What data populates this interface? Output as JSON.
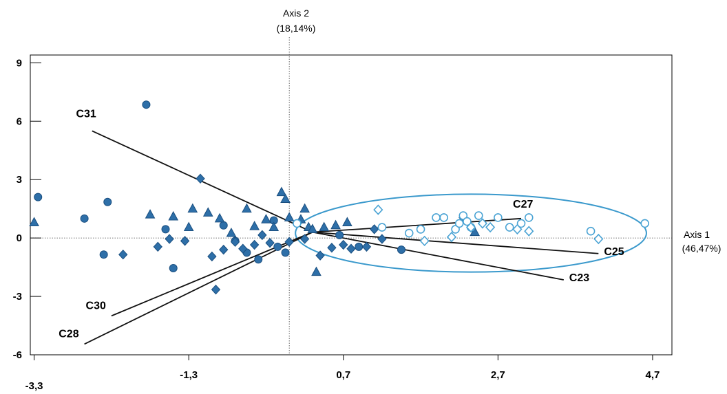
{
  "chart_data": {
    "type": "scatter",
    "title": "",
    "axis1_label": "Axis 1",
    "axis1_pct": "(46,47%)",
    "axis2_label": "Axis 2",
    "axis2_pct": "(18,14%)",
    "xlim": [
      -3.35,
      4.95
    ],
    "ylim": [
      -6.0,
      9.4
    ],
    "x_ticks": [
      {
        "value": -3.3,
        "label": "-3,3"
      },
      {
        "value": -1.3,
        "label": "-1,3"
      },
      {
        "value": 0.7,
        "label": "0,7"
      },
      {
        "value": 2.7,
        "label": "2,7"
      },
      {
        "value": 4.7,
        "label": "4,7"
      }
    ],
    "y_ticks": [
      {
        "value": 9,
        "label": "9"
      },
      {
        "value": 6,
        "label": "6"
      },
      {
        "value": 3,
        "label": "3"
      },
      {
        "value": 0,
        "label": "0"
      },
      {
        "value": -3,
        "label": "-3"
      },
      {
        "value": -6,
        "label": "-6"
      }
    ],
    "origin": [
      0.3,
      0.3
    ],
    "vectors": [
      {
        "name": "C31",
        "x": -2.55,
        "y": 5.5
      },
      {
        "name": "C30",
        "x": -2.3,
        "y": -4.0
      },
      {
        "name": "C28",
        "x": -2.65,
        "y": -5.45
      },
      {
        "name": "C27",
        "x": 3.0,
        "y": 1.0
      },
      {
        "name": "C25",
        "x": 4.0,
        "y": -0.8
      },
      {
        "name": "C23",
        "x": 3.55,
        "y": -2.15
      }
    ],
    "ellipse": {
      "center": [
        2.35,
        0.25
      ],
      "rx": 2.27,
      "ry": 2.0
    },
    "colors": {
      "filled": "#2e6fa8",
      "filled_stroke": "#1a4f80",
      "open": "#4aa3d4",
      "ellipse": "#3a99cc"
    },
    "series": [
      {
        "shape": "circle",
        "style": "filled",
        "points": [
          [
            -3.25,
            2.1
          ],
          [
            -2.65,
            1.0
          ],
          [
            -2.35,
            1.85
          ],
          [
            -2.4,
            -0.85
          ],
          [
            -1.85,
            6.85
          ],
          [
            -1.6,
            0.45
          ],
          [
            -1.5,
            -1.55
          ],
          [
            -0.85,
            0.65
          ],
          [
            -0.7,
            -0.15
          ],
          [
            -0.55,
            -0.75
          ],
          [
            -0.4,
            -1.1
          ],
          [
            -0.2,
            0.9
          ],
          [
            -0.15,
            -0.45
          ],
          [
            -0.05,
            -0.75
          ],
          [
            0.65,
            0.15
          ],
          [
            0.9,
            -0.45
          ],
          [
            1.45,
            -0.6
          ]
        ]
      },
      {
        "shape": "triangle",
        "style": "filled",
        "points": [
          [
            -3.3,
            0.8
          ],
          [
            -1.8,
            1.2
          ],
          [
            -1.5,
            1.1
          ],
          [
            -1.25,
            1.5
          ],
          [
            -1.05,
            1.3
          ],
          [
            -0.9,
            1.0
          ],
          [
            -0.55,
            1.5
          ],
          [
            -0.3,
            0.95
          ],
          [
            -0.45,
            0.6
          ],
          [
            -0.2,
            0.55
          ],
          [
            -0.1,
            2.35
          ],
          [
            -0.05,
            2.0
          ],
          [
            0.0,
            1.05
          ],
          [
            0.15,
            0.95
          ],
          [
            0.25,
            0.55
          ],
          [
            0.3,
            0.45
          ],
          [
            0.2,
            1.5
          ],
          [
            0.45,
            0.55
          ],
          [
            0.6,
            0.65
          ],
          [
            0.75,
            0.8
          ],
          [
            0.35,
            -1.75
          ],
          [
            2.4,
            0.3
          ],
          [
            -1.3,
            0.55
          ],
          [
            -0.75,
            0.25
          ]
        ]
      },
      {
        "shape": "diamond",
        "style": "filled",
        "points": [
          [
            -2.15,
            -0.85
          ],
          [
            -1.7,
            -0.45
          ],
          [
            -1.55,
            -0.05
          ],
          [
            -1.35,
            -0.15
          ],
          [
            -1.15,
            3.05
          ],
          [
            -1.0,
            -0.95
          ],
          [
            -0.95,
            -2.65
          ],
          [
            -0.7,
            -0.2
          ],
          [
            -0.6,
            -0.55
          ],
          [
            -0.45,
            -0.35
          ],
          [
            -0.25,
            -0.25
          ],
          [
            0.0,
            -0.2
          ],
          [
            0.2,
            -0.05
          ],
          [
            0.4,
            -0.9
          ],
          [
            0.55,
            -0.5
          ],
          [
            0.7,
            -0.35
          ],
          [
            0.8,
            -0.55
          ],
          [
            1.0,
            -0.45
          ],
          [
            1.1,
            0.45
          ],
          [
            1.2,
            -0.05
          ],
          [
            2.25,
            1.05
          ],
          [
            -0.85,
            -0.6
          ],
          [
            -0.35,
            0.15
          ]
        ]
      },
      {
        "shape": "circle",
        "style": "open",
        "points": [
          [
            1.2,
            0.55
          ],
          [
            1.55,
            0.25
          ],
          [
            1.7,
            0.45
          ],
          [
            1.9,
            1.05
          ],
          [
            2.0,
            1.05
          ],
          [
            2.15,
            0.45
          ],
          [
            2.2,
            0.75
          ],
          [
            2.25,
            1.15
          ],
          [
            2.35,
            0.55
          ],
          [
            2.45,
            1.15
          ],
          [
            2.7,
            1.05
          ],
          [
            2.85,
            0.55
          ],
          [
            3.0,
            0.75
          ],
          [
            3.1,
            1.05
          ],
          [
            3.9,
            0.35
          ],
          [
            4.6,
            0.75
          ],
          [
            0.1,
            0.75
          ],
          [
            2.3,
            0.85
          ]
        ]
      },
      {
        "shape": "diamond",
        "style": "open",
        "points": [
          [
            1.15,
            1.45
          ],
          [
            1.75,
            -0.15
          ],
          [
            2.1,
            0.05
          ],
          [
            2.35,
            0.55
          ],
          [
            2.6,
            0.55
          ],
          [
            2.95,
            0.45
          ],
          [
            3.1,
            0.35
          ],
          [
            4.0,
            -0.05
          ],
          [
            2.5,
            0.75
          ]
        ]
      }
    ]
  }
}
